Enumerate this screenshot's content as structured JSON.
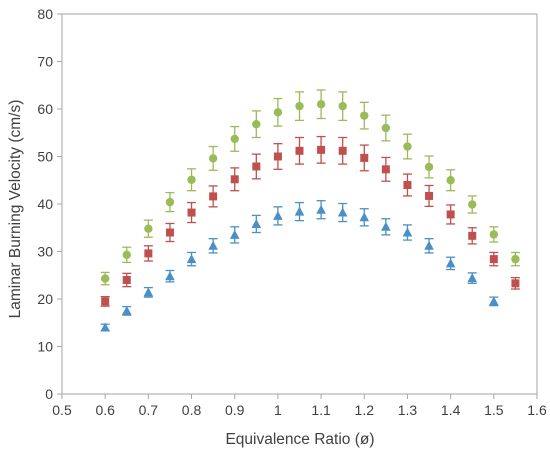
{
  "chart_data": {
    "type": "scatter",
    "title": "",
    "xlabel": "Equivalence Ratio (ø)",
    "ylabel": "Laminar Burning Velocity (cm/s)",
    "xlim": [
      0.5,
      1.6
    ],
    "ylim": [
      0,
      80
    ],
    "x_ticks": [
      "0.5",
      "0.6",
      "0.7",
      "0.8",
      "0.9",
      "1",
      "1.1",
      "1.2",
      "1.3",
      "1.4",
      "1.5",
      "1.6"
    ],
    "y_ticks": [
      "0",
      "10",
      "20",
      "30",
      "40",
      "50",
      "60",
      "70",
      "80"
    ],
    "grid": false,
    "legend": "none",
    "series": [
      {
        "marker": "circle",
        "color": "#9BBB59",
        "x": [
          0.6,
          0.65,
          0.7,
          0.75,
          0.8,
          0.85,
          0.9,
          0.95,
          1.0,
          1.05,
          1.1,
          1.15,
          1.2,
          1.25,
          1.3,
          1.35,
          1.4,
          1.45,
          1.5,
          1.55
        ],
        "y": [
          24.3,
          29.3,
          34.8,
          40.4,
          45.1,
          49.6,
          53.7,
          56.8,
          59.3,
          60.6,
          61.0,
          60.6,
          58.6,
          56.0,
          52.1,
          47.8,
          45.0,
          39.9,
          33.6,
          28.4
        ],
        "err": [
          1.3,
          1.6,
          1.8,
          2.0,
          2.3,
          2.5,
          2.6,
          2.8,
          2.9,
          3.0,
          3.0,
          3.0,
          2.8,
          2.7,
          2.6,
          2.3,
          2.2,
          1.8,
          1.6,
          1.4
        ]
      },
      {
        "marker": "square",
        "color": "#C0504D",
        "x": [
          0.6,
          0.65,
          0.7,
          0.75,
          0.8,
          0.85,
          0.9,
          0.95,
          1.0,
          1.05,
          1.1,
          1.15,
          1.2,
          1.25,
          1.3,
          1.35,
          1.4,
          1.45,
          1.5,
          1.55
        ],
        "y": [
          19.5,
          24.0,
          29.6,
          34.0,
          38.2,
          41.6,
          45.2,
          47.9,
          50.0,
          51.2,
          51.4,
          51.2,
          49.7,
          47.3,
          44.0,
          41.7,
          37.8,
          33.3,
          28.4,
          23.3
        ],
        "err": [
          1.0,
          1.4,
          1.6,
          1.9,
          2.1,
          2.2,
          2.4,
          2.6,
          2.7,
          2.8,
          2.8,
          2.8,
          2.7,
          2.5,
          2.3,
          2.2,
          2.0,
          1.7,
          1.4,
          1.2
        ]
      },
      {
        "marker": "triangle",
        "color": "#4A90C8",
        "x": [
          0.6,
          0.65,
          0.7,
          0.75,
          0.8,
          0.85,
          0.9,
          0.95,
          1.0,
          1.05,
          1.1,
          1.15,
          1.2,
          1.25,
          1.3,
          1.35,
          1.4,
          1.45,
          1.5
        ],
        "y": [
          14.0,
          17.5,
          21.4,
          24.8,
          28.4,
          31.2,
          33.5,
          35.8,
          37.5,
          38.4,
          38.8,
          38.2,
          37.2,
          35.2,
          34.0,
          31.2,
          27.5,
          24.4,
          19.5
        ],
        "err": [
          0.7,
          0.9,
          1.0,
          1.2,
          1.4,
          1.5,
          1.7,
          1.8,
          1.9,
          1.9,
          1.9,
          1.9,
          1.8,
          1.7,
          1.6,
          1.5,
          1.3,
          1.1,
          0.9
        ]
      }
    ]
  }
}
